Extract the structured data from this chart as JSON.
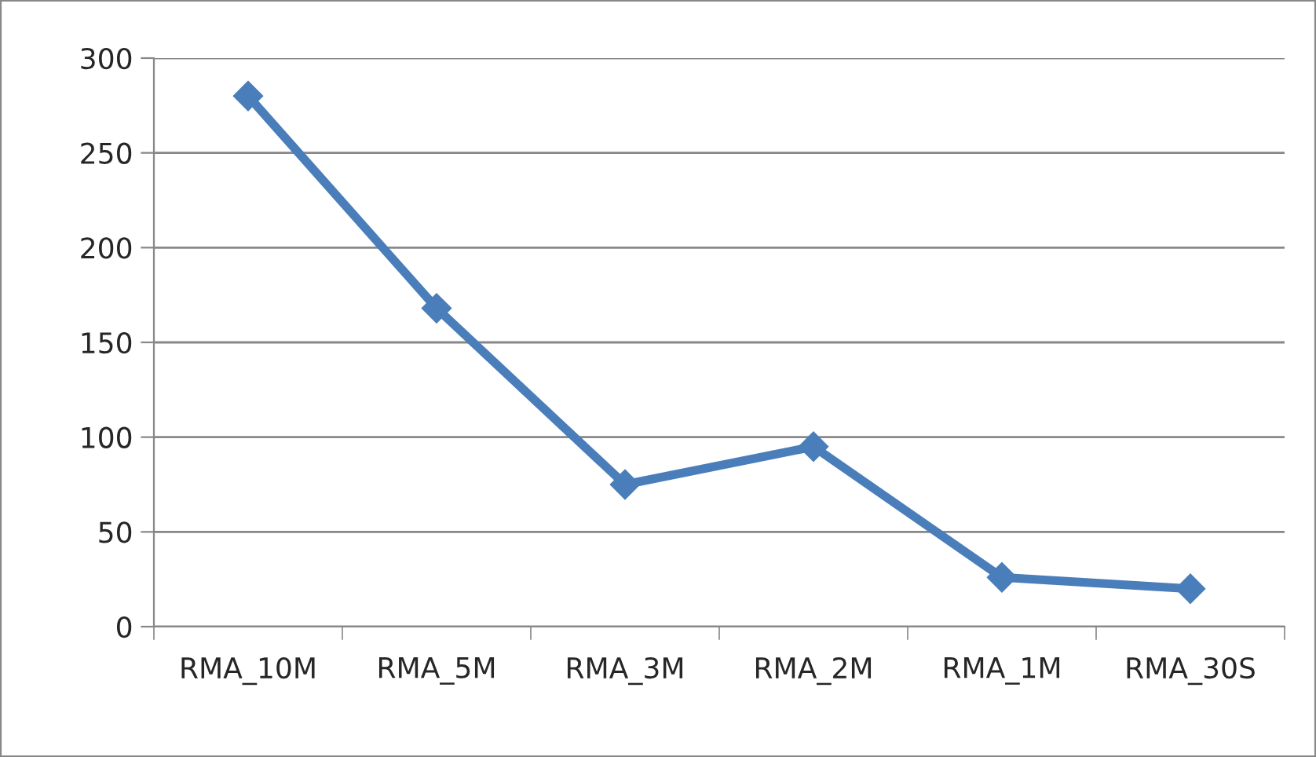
{
  "chart_data": {
    "type": "line",
    "categories": [
      "RMA_10M",
      "RMA_5M",
      "RMA_3M",
      "RMA_2M",
      "RMA_1M",
      "RMA_30S"
    ],
    "series": [
      {
        "color": "#4a7ebb",
        "values": [
          280,
          168,
          75,
          95,
          26,
          20
        ]
      }
    ],
    "ylim": [
      0,
      300
    ],
    "yticks": [
      0,
      50,
      100,
      150,
      200,
      250,
      300
    ],
    "grid": "y",
    "marker": "diamond",
    "line_style": "solid"
  }
}
